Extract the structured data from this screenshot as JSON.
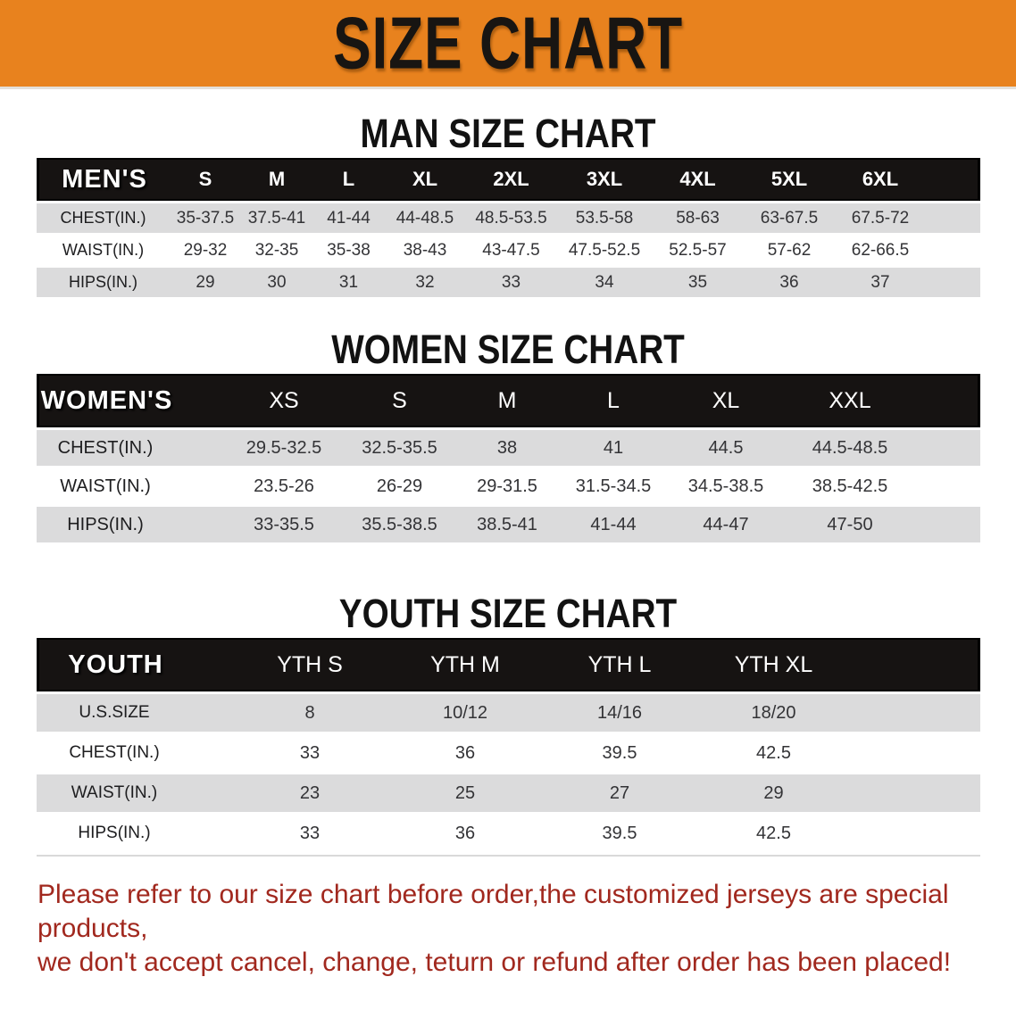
{
  "banner": {
    "title": "SIZE CHART",
    "bg_color": "#E8821E",
    "text_color": "#181512"
  },
  "colors": {
    "table_header_bg": "#161312",
    "row_stripe_gray": "#DBDBDC",
    "disclaimer_red": "#A1281E"
  },
  "sections": {
    "man": {
      "heading": "MAN SIZE CHART",
      "table": {
        "header_label": "MEN'S",
        "sizes": [
          "S",
          "M",
          "L",
          "XL",
          "2XL",
          "3XL",
          "4XL",
          "5XL",
          "6XL"
        ],
        "rows": [
          {
            "label": "CHEST(IN.)",
            "values": [
              "35-37.5",
              "37.5-41",
              "41-44",
              "44-48.5",
              "48.5-53.5",
              "53.5-58",
              "58-63",
              "63-67.5",
              "67.5-72"
            ]
          },
          {
            "label": "WAIST(IN.)",
            "values": [
              "29-32",
              "32-35",
              "35-38",
              "38-43",
              "43-47.5",
              "47.5-52.5",
              "52.5-57",
              "57-62",
              "62-66.5"
            ]
          },
          {
            "label": "HIPS(IN.)",
            "values": [
              "29",
              "30",
              "31",
              "32",
              "33",
              "34",
              "35",
              "36",
              "37"
            ]
          }
        ]
      }
    },
    "women": {
      "heading": "WOMEN SIZE CHART",
      "table": {
        "header_label": "WOMEN'S",
        "sizes": [
          "XS",
          "S",
          "M",
          "L",
          "XL",
          "XXL"
        ],
        "rows": [
          {
            "label": "CHEST(IN.)",
            "values": [
              "29.5-32.5",
              "32.5-35.5",
              "38",
              "41",
              "44.5",
              "44.5-48.5"
            ]
          },
          {
            "label": "WAIST(IN.)",
            "values": [
              "23.5-26",
              "26-29",
              "29-31.5",
              "31.5-34.5",
              "34.5-38.5",
              "38.5-42.5"
            ]
          },
          {
            "label": "HIPS(IN.)",
            "values": [
              "33-35.5",
              "35.5-38.5",
              "38.5-41",
              "41-44",
              "44-47",
              "47-50"
            ]
          }
        ]
      }
    },
    "youth": {
      "heading": "YOUTH SIZE CHART",
      "table": {
        "header_label": "YOUTH",
        "sizes": [
          "YTH S",
          "YTH M",
          "YTH L",
          "YTH XL"
        ],
        "rows": [
          {
            "label": "U.S.SIZE",
            "values": [
              "8",
              "10/12",
              "14/16",
              "18/20"
            ]
          },
          {
            "label": "CHEST(IN.)",
            "values": [
              "33",
              "36",
              "39.5",
              "42.5"
            ]
          },
          {
            "label": "WAIST(IN.)",
            "values": [
              "23",
              "25",
              "27",
              "29"
            ]
          },
          {
            "label": "HIPS(IN.)",
            "values": [
              "33",
              "36",
              "39.5",
              "42.5"
            ]
          }
        ]
      }
    }
  },
  "disclaimer": {
    "line1": "Please refer to our size chart before order,the customized jerseys are special products,",
    "line2": "we don't accept cancel, change, teturn or refund after order has been placed!"
  }
}
